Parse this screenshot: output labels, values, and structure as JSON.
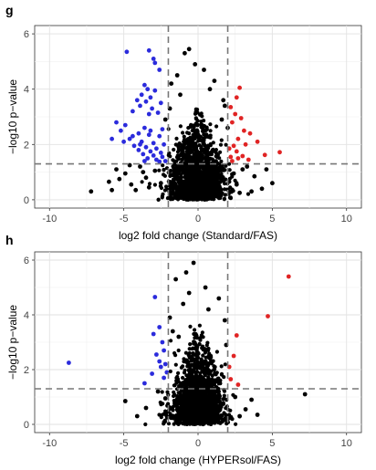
{
  "chart_data": [
    {
      "type": "scatter",
      "panel_label": "g",
      "title": "",
      "xlabel": "log2 fold change (Standard/FAS)",
      "ylabel": "−log10 p−value",
      "xlim": [
        -11,
        11
      ],
      "ylim": [
        -0.3,
        6.3
      ],
      "x_ticks": [
        -10,
        -5,
        0,
        5,
        10
      ],
      "y_ticks": [
        0,
        2,
        4,
        6
      ],
      "grid": true,
      "legend": "none",
      "thresholds": {
        "fold_change_x": [
          -2,
          2
        ],
        "p_value_y": 1.3
      },
      "colors": {
        "down": "#2b2bdc",
        "up": "#e02424",
        "ns": "#000000",
        "threshold_line": "#777777"
      },
      "series": [
        {
          "color": "down",
          "points": [
            [
              -4.8,
              5.35
            ],
            [
              -3.3,
              5.4
            ],
            [
              -3.0,
              5.1
            ],
            [
              -2.9,
              4.95
            ],
            [
              -2.6,
              4.7
            ],
            [
              -3.6,
              4.15
            ],
            [
              -3.4,
              4.0
            ],
            [
              -2.9,
              3.95
            ],
            [
              -3.8,
              3.8
            ],
            [
              -3.2,
              3.7
            ],
            [
              -4.1,
              3.6
            ],
            [
              -3.5,
              3.55
            ],
            [
              -2.5,
              3.5
            ],
            [
              -3.9,
              3.4
            ],
            [
              -3.1,
              3.3
            ],
            [
              -4.4,
              3.2
            ],
            [
              -3.3,
              3.1
            ],
            [
              -2.7,
              3.15
            ],
            [
              -5.5,
              2.8
            ],
            [
              -4.9,
              2.7
            ],
            [
              -3.6,
              2.6
            ],
            [
              -2.4,
              2.55
            ],
            [
              -5.2,
              2.5
            ],
            [
              -4.0,
              2.4
            ],
            [
              -3.3,
              2.35
            ],
            [
              -2.6,
              2.3
            ],
            [
              -5.8,
              2.2
            ],
            [
              -4.6,
              2.2
            ],
            [
              -3.8,
              2.1
            ],
            [
              -3.0,
              2.05
            ],
            [
              -2.3,
              2.0
            ],
            [
              -4.3,
              1.95
            ],
            [
              -3.5,
              1.9
            ],
            [
              -2.8,
              1.85
            ],
            [
              -4.0,
              1.8
            ],
            [
              -3.2,
              1.75
            ],
            [
              -2.5,
              1.7
            ],
            [
              -3.7,
              1.65
            ],
            [
              -3.0,
              1.6
            ],
            [
              -2.4,
              1.55
            ],
            [
              -3.4,
              1.5
            ],
            [
              -2.8,
              1.45
            ],
            [
              -2.2,
              1.4
            ],
            [
              -3.6,
              1.4
            ],
            [
              -2.6,
              1.38
            ],
            [
              -5.0,
              2.1
            ],
            [
              -4.4,
              2.3
            ],
            [
              -3.9,
              2.0
            ],
            [
              -3.2,
              2.5
            ]
          ]
        },
        {
          "color": "up",
          "points": [
            [
              2.8,
              4.05
            ],
            [
              2.6,
              3.7
            ],
            [
              2.2,
              3.35
            ],
            [
              2.5,
              3.1
            ],
            [
              2.9,
              2.95
            ],
            [
              2.3,
              2.8
            ],
            [
              3.1,
              2.5
            ],
            [
              3.5,
              2.4
            ],
            [
              2.7,
              2.2
            ],
            [
              4.0,
              2.1
            ],
            [
              3.2,
              2.0
            ],
            [
              2.4,
              1.95
            ],
            [
              2.1,
              1.85
            ],
            [
              2.6,
              1.75
            ],
            [
              5.5,
              1.72
            ],
            [
              4.5,
              1.62
            ],
            [
              3.0,
              1.58
            ],
            [
              2.2,
              1.55
            ],
            [
              2.7,
              1.5
            ],
            [
              3.4,
              1.45
            ],
            [
              2.3,
              1.4
            ]
          ]
        },
        {
          "color": "ns",
          "points": [
            [
              -0.6,
              5.45
            ],
            [
              -0.9,
              5.3
            ],
            [
              -0.2,
              4.9
            ],
            [
              0.4,
              4.7
            ],
            [
              -1.4,
              4.5
            ],
            [
              1.1,
              4.3
            ],
            [
              -1.8,
              4.2
            ],
            [
              0.8,
              4.0
            ],
            [
              -1.2,
              3.8
            ],
            [
              1.7,
              3.6
            ],
            [
              -7.2,
              0.3
            ],
            [
              -5.8,
              0.35
            ],
            [
              -5.3,
              0.75
            ],
            [
              -4.5,
              0.55
            ],
            [
              -4.9,
              0.95
            ],
            [
              -3.9,
              1.2
            ],
            [
              -3.5,
              0.8
            ],
            [
              -6.0,
              0.65
            ],
            [
              -4.2,
              0.35
            ],
            [
              -3.3,
              0.45
            ],
            [
              -2.9,
              1.05
            ],
            [
              -5.5,
              1.1
            ],
            [
              -4.6,
              1.25
            ],
            [
              -3.7,
              1.0
            ],
            [
              -2.5,
              0.6
            ],
            [
              3.0,
              1.1
            ],
            [
              3.8,
              0.85
            ],
            [
              2.6,
              0.55
            ],
            [
              4.3,
              0.4
            ],
            [
              3.3,
              1.2
            ],
            [
              2.4,
              0.95
            ],
            [
              5.0,
              0.6
            ],
            [
              4.6,
              1.1
            ],
            [
              3.6,
              0.3
            ],
            [
              2.8,
              0.25
            ],
            [
              -2.2,
              2.9
            ],
            [
              -1.9,
              3.3
            ],
            [
              1.8,
              3.4
            ],
            [
              1.6,
              2.9
            ],
            [
              2.0,
              2.6
            ]
          ]
        }
      ],
      "background_cloud": {
        "color": "ns",
        "note_center": [
          0,
          0.9
        ],
        "x_spread_sd": 0.9,
        "y_max": 3.5
      }
    },
    {
      "type": "scatter",
      "panel_label": "h",
      "title": "",
      "xlabel": "log2 fold change (HYPERsol/FAS)",
      "ylabel": "−log10 p−value",
      "xlim": [
        -11,
        11
      ],
      "ylim": [
        -0.3,
        6.3
      ],
      "x_ticks": [
        -10,
        -5,
        0,
        5,
        10
      ],
      "y_ticks": [
        0,
        2,
        4,
        6
      ],
      "grid": true,
      "legend": "none",
      "thresholds": {
        "fold_change_x": [
          -2,
          2
        ],
        "p_value_y": 1.3
      },
      "colors": {
        "down": "#2b2bdc",
        "up": "#e02424",
        "ns": "#000000",
        "threshold_line": "#777777"
      },
      "series": [
        {
          "color": "down",
          "points": [
            [
              -8.7,
              2.25
            ],
            [
              -3.6,
              1.5
            ],
            [
              -2.9,
              4.65
            ],
            [
              -3.0,
              3.3
            ],
            [
              -2.6,
              3.55
            ],
            [
              -2.4,
              3.0
            ],
            [
              -2.3,
              2.7
            ],
            [
              -2.8,
              2.55
            ],
            [
              -2.2,
              2.2
            ],
            [
              -2.5,
              2.1
            ],
            [
              -2.1,
              1.9
            ],
            [
              -2.3,
              1.7
            ],
            [
              -3.1,
              1.85
            ],
            [
              -2.6,
              2.3
            ]
          ]
        },
        {
          "color": "up",
          "points": [
            [
              6.1,
              5.4
            ],
            [
              4.7,
              3.95
            ],
            [
              2.6,
              3.25
            ],
            [
              2.4,
              2.5
            ],
            [
              2.2,
              1.65
            ],
            [
              2.7,
              1.45
            ],
            [
              2.1,
              2.1
            ]
          ]
        },
        {
          "color": "ns",
          "points": [
            [
              7.2,
              1.1
            ],
            [
              -4.9,
              0.85
            ],
            [
              -3.5,
              0.6
            ],
            [
              -2.7,
              1.2
            ],
            [
              3.6,
              0.9
            ],
            [
              3.2,
              0.55
            ],
            [
              2.8,
              0.3
            ],
            [
              -0.8,
              5.55
            ],
            [
              -1.5,
              5.3
            ],
            [
              -0.6,
              4.8
            ],
            [
              1.4,
              4.6
            ],
            [
              -1.0,
              4.4
            ],
            [
              0.7,
              4.2
            ],
            [
              1.8,
              3.8
            ],
            [
              -1.9,
              3.9
            ],
            [
              -1.7,
              3.4
            ],
            [
              1.9,
              2.9
            ],
            [
              2.5,
              1.0
            ],
            [
              -2.2,
              0.95
            ],
            [
              4.0,
              0.35
            ],
            [
              -4.1,
              0.3
            ],
            [
              -0.3,
              5.9
            ],
            [
              0.5,
              5.0
            ],
            [
              -1.3,
              3.2
            ]
          ]
        }
      ],
      "background_cloud": {
        "color": "ns",
        "note_center": [
          0,
          0.9
        ],
        "x_spread_sd": 0.85,
        "y_max": 3.8
      }
    }
  ]
}
